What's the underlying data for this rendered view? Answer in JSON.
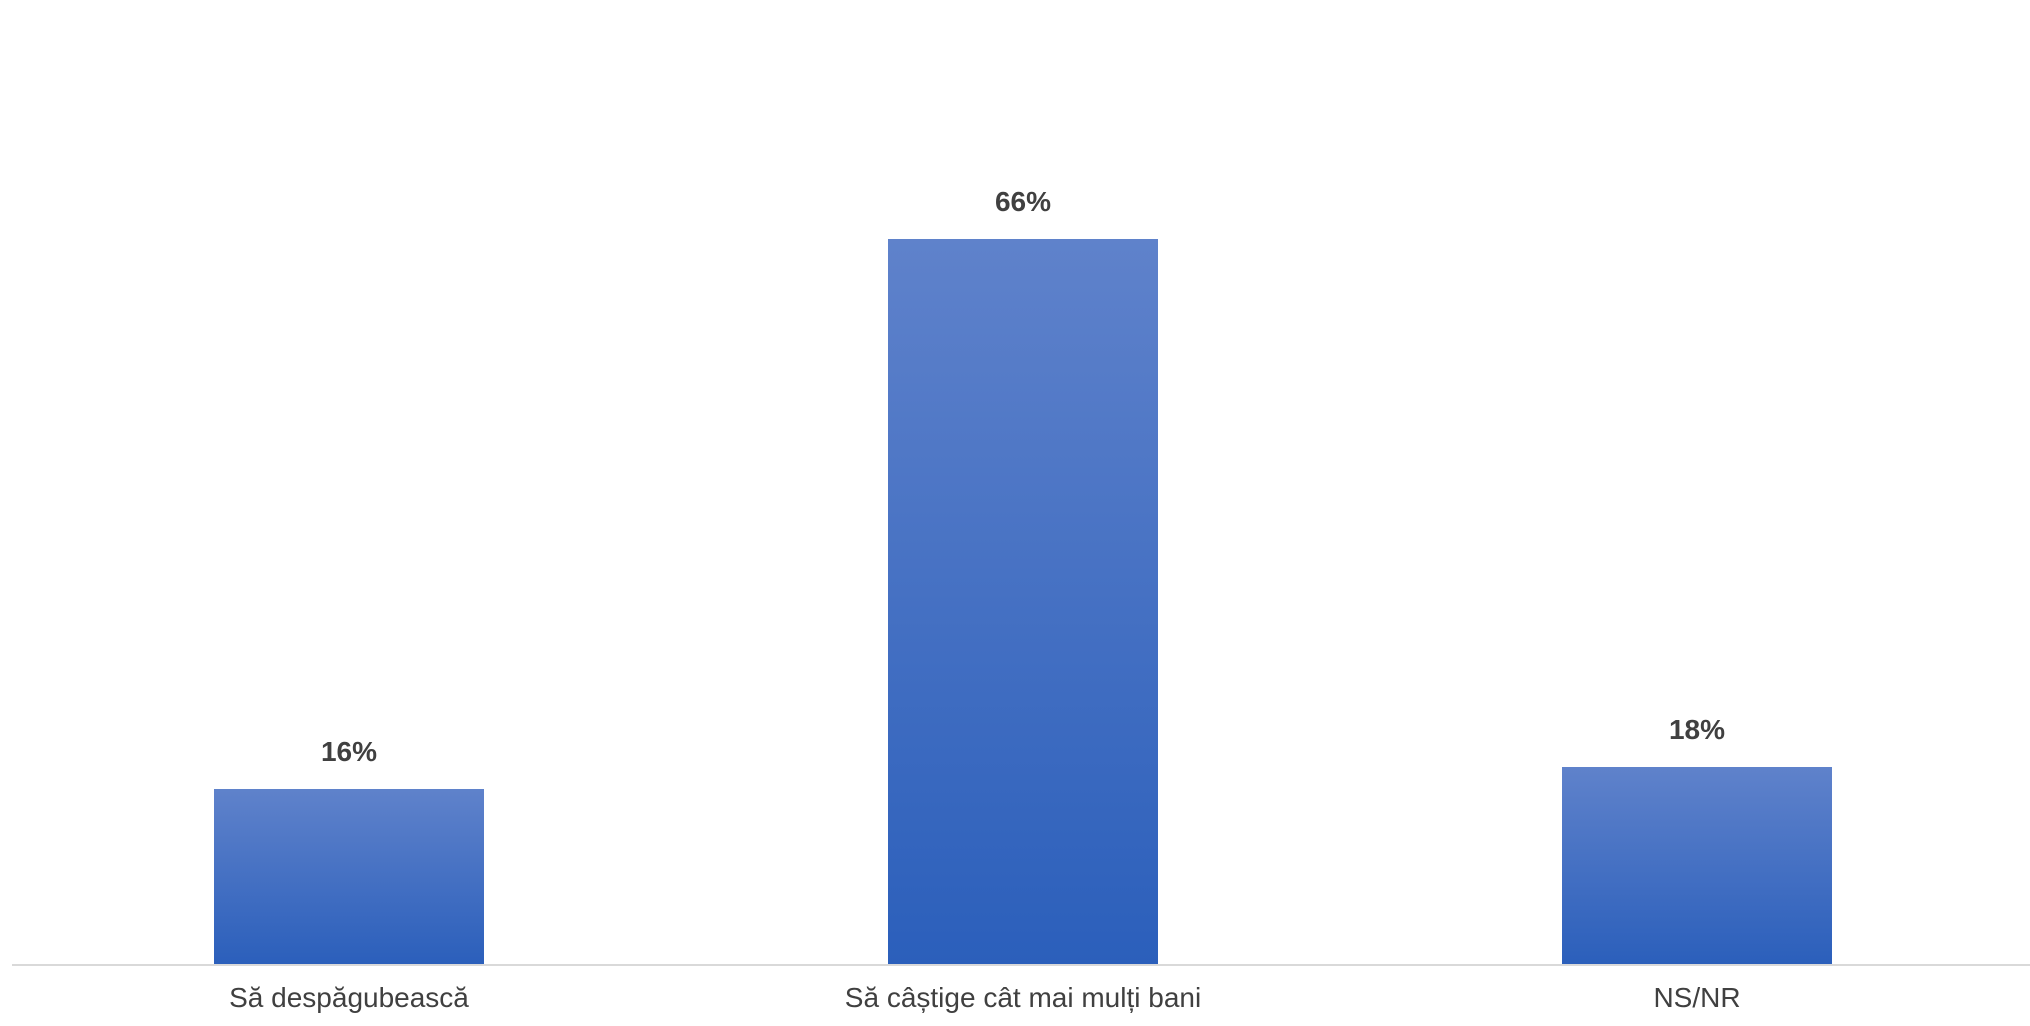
{
  "chart_data": {
    "type": "bar",
    "categories": [
      "Să despăgubească",
      "Să câștige cât mai mulți bani",
      "NS/NR"
    ],
    "values": [
      16,
      66,
      18
    ],
    "data_labels": [
      "16%",
      "66%",
      "18%"
    ],
    "unit": "%",
    "title": "",
    "xlabel": "",
    "ylabel": "",
    "ylim": [
      0,
      70
    ],
    "grid": false,
    "legend": "none",
    "colors": {
      "bar_top": "#5f82cb",
      "bar_bottom": "#2b5fbb",
      "axis": "#d9d9d9",
      "text": "#404040"
    }
  }
}
